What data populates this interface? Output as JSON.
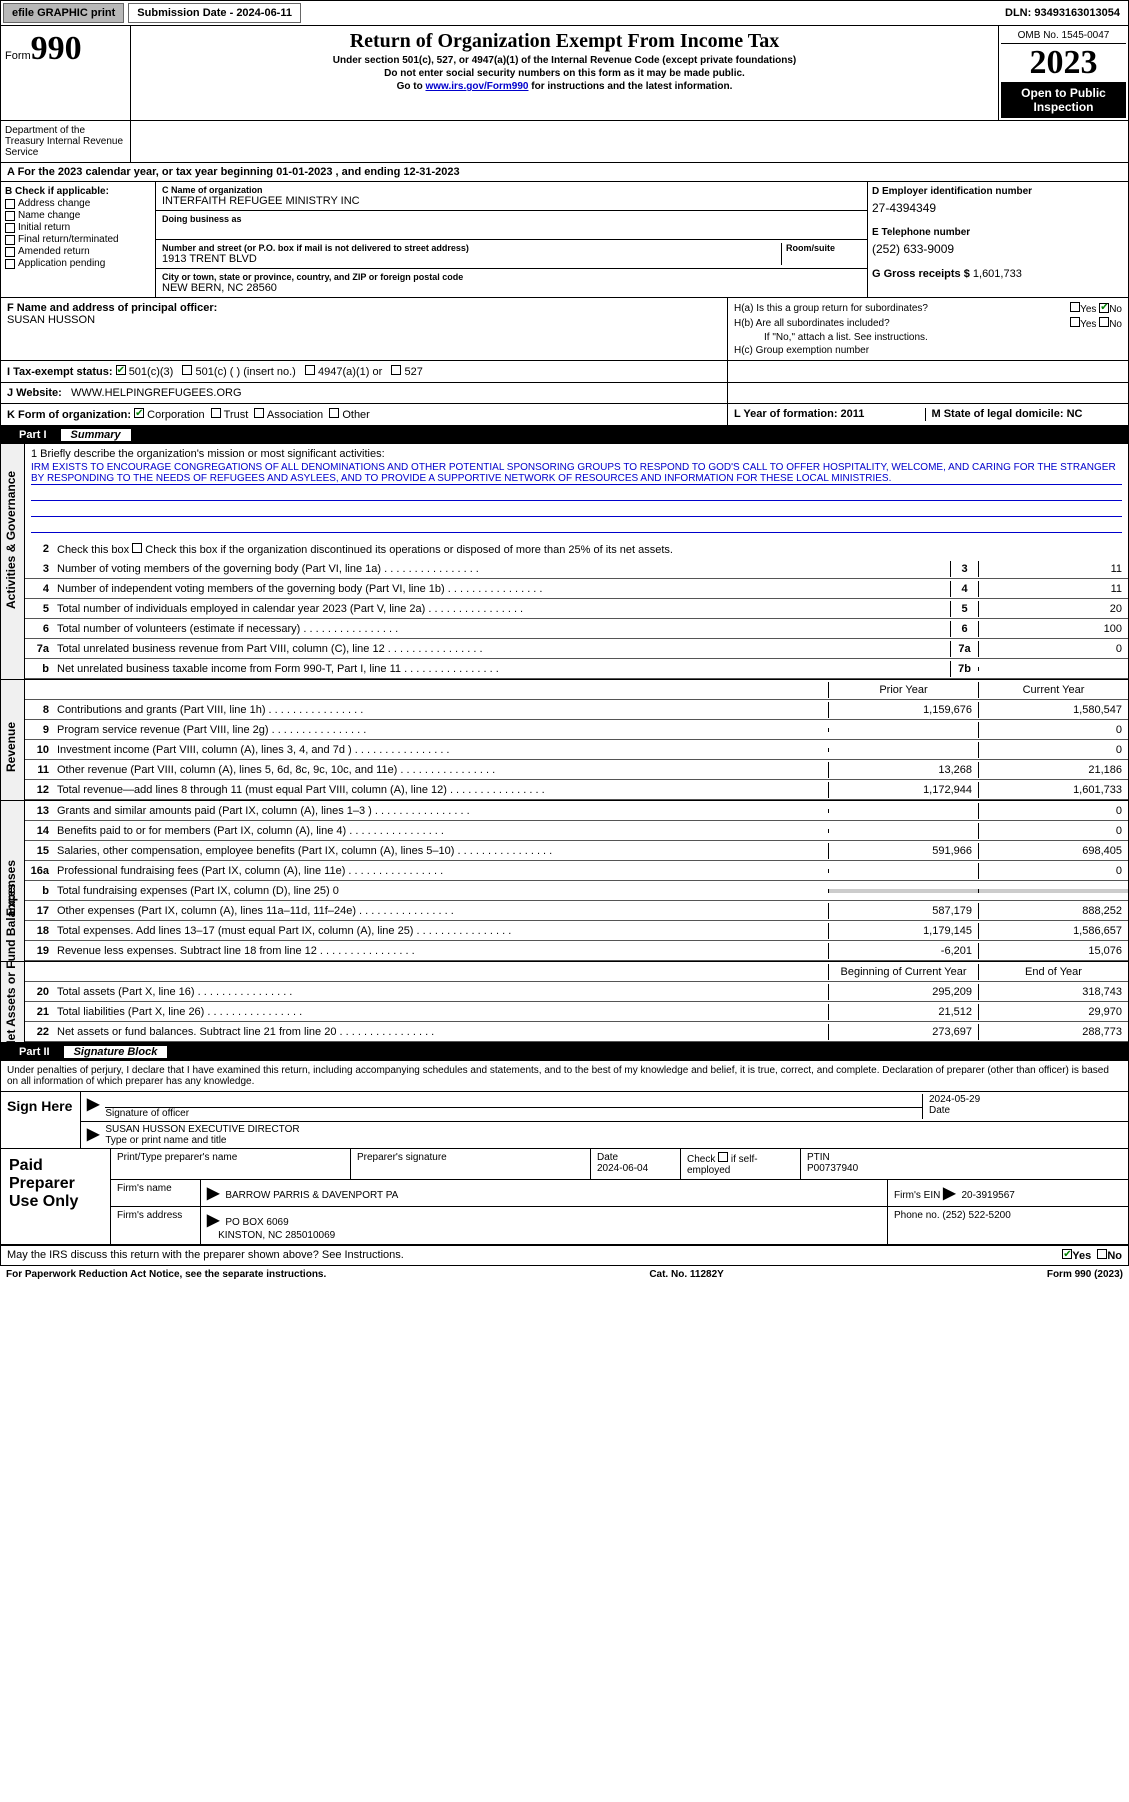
{
  "topbar": {
    "efile": "efile GRAPHIC print",
    "subdate_label": "Submission Date - 2024-06-11",
    "dln": "DLN: 93493163013054"
  },
  "header": {
    "form_prefix": "Form",
    "form_num": "990",
    "title": "Return of Organization Exempt From Income Tax",
    "sub1": "Under section 501(c), 527, or 4947(a)(1) of the Internal Revenue Code (except private foundations)",
    "sub2": "Do not enter social security numbers on this form as it may be made public.",
    "goto": "Go to www.irs.gov/Form990 for instructions and the latest information.",
    "goto_link": "www.irs.gov/Form990",
    "omb": "OMB No. 1545-0047",
    "year": "2023",
    "open": "Open to Public Inspection",
    "dept": "Department of the Treasury Internal Revenue Service"
  },
  "rowA": "A For the 2023 calendar year, or tax year beginning 01-01-2023   , and ending 12-31-2023",
  "colB": {
    "label": "B Check if applicable:",
    "opts": [
      "Address change",
      "Name change",
      "Initial return",
      "Final return/terminated",
      "Amended return",
      "Application pending"
    ]
  },
  "colC": {
    "name_label": "C Name of organization",
    "name": "INTERFAITH REFUGEE MINISTRY INC",
    "dba_label": "Doing business as",
    "addr_label": "Number and street (or P.O. box if mail is not delivered to street address)",
    "room_label": "Room/suite",
    "addr": "1913 TRENT BLVD",
    "city_label": "City or town, state or province, country, and ZIP or foreign postal code",
    "city": "NEW BERN, NC  28560"
  },
  "colD": {
    "ein_label": "D Employer identification number",
    "ein": "27-4394349",
    "phone_label": "E Telephone number",
    "phone": "(252) 633-9009",
    "gross_label": "G Gross receipts $",
    "gross": "1,601,733"
  },
  "rowF": {
    "label": "F Name and address of principal officer:",
    "name": "SUSAN HUSSON"
  },
  "rowH": {
    "ha": "H(a)  Is this a group return for subordinates?",
    "hb": "H(b)  Are all subordinates included?",
    "hb_note": "If \"No,\" attach a list. See instructions.",
    "hc": "H(c)  Group exemption number",
    "yes": "Yes",
    "no": "No"
  },
  "rowI": {
    "label": "I   Tax-exempt status:",
    "o1": "501(c)(3)",
    "o2": "501(c) (  ) (insert no.)",
    "o3": "4947(a)(1) or",
    "o4": "527"
  },
  "rowJ": {
    "label": "J   Website:",
    "val": "WWW.HELPINGREFUGEES.ORG"
  },
  "rowK": {
    "label": "K Form of organization:",
    "o1": "Corporation",
    "o2": "Trust",
    "o3": "Association",
    "o4": "Other"
  },
  "rowL": {
    "label": "L Year of formation: 2011"
  },
  "rowM": {
    "label": "M State of legal domicile: NC"
  },
  "part1": {
    "label": "Part I",
    "title": "Summary"
  },
  "mission": {
    "q": "1  Briefly describe the organization's mission or most significant activities:",
    "text": "IRM EXISTS TO ENCOURAGE CONGREGATIONS OF ALL DENOMINATIONS AND OTHER POTENTIAL SPONSORING GROUPS TO RESPOND TO GOD'S CALL TO OFFER HOSPITALITY, WELCOME, AND CARING FOR THE STRANGER BY RESPONDING TO THE NEEDS OF REFUGEES AND ASYLEES, AND TO PROVIDE A SUPPORTIVE NETWORK OF RESOURCES AND INFORMATION FOR THESE LOCAL MINISTRIES."
  },
  "gov": {
    "q2": "Check this box      if the organization discontinued its operations or disposed of more than 25% of its net assets.",
    "rows": [
      {
        "n": "3",
        "t": "Number of voting members of the governing body (Part VI, line 1a)",
        "box": "3",
        "v": "11"
      },
      {
        "n": "4",
        "t": "Number of independent voting members of the governing body (Part VI, line 1b)",
        "box": "4",
        "v": "11"
      },
      {
        "n": "5",
        "t": "Total number of individuals employed in calendar year 2023 (Part V, line 2a)",
        "box": "5",
        "v": "20"
      },
      {
        "n": "6",
        "t": "Total number of volunteers (estimate if necessary)",
        "box": "6",
        "v": "100"
      },
      {
        "n": "7a",
        "t": "Total unrelated business revenue from Part VIII, column (C), line 12",
        "box": "7a",
        "v": "0"
      },
      {
        "n": "b",
        "t": "Net unrelated business taxable income from Form 990-T, Part I, line 11",
        "box": "7b",
        "v": ""
      }
    ]
  },
  "rev": {
    "hdr_prior": "Prior Year",
    "hdr_curr": "Current Year",
    "rows": [
      {
        "n": "8",
        "t": "Contributions and grants (Part VIII, line 1h)",
        "p": "1,159,676",
        "c": "1,580,547"
      },
      {
        "n": "9",
        "t": "Program service revenue (Part VIII, line 2g)",
        "p": "",
        "c": "0"
      },
      {
        "n": "10",
        "t": "Investment income (Part VIII, column (A), lines 3, 4, and 7d )",
        "p": "",
        "c": "0"
      },
      {
        "n": "11",
        "t": "Other revenue (Part VIII, column (A), lines 5, 6d, 8c, 9c, 10c, and 11e)",
        "p": "13,268",
        "c": "21,186"
      },
      {
        "n": "12",
        "t": "Total revenue—add lines 8 through 11 (must equal Part VIII, column (A), line 12)",
        "p": "1,172,944",
        "c": "1,601,733"
      }
    ]
  },
  "exp": {
    "rows": [
      {
        "n": "13",
        "t": "Grants and similar amounts paid (Part IX, column (A), lines 1–3 )",
        "p": "",
        "c": "0"
      },
      {
        "n": "14",
        "t": "Benefits paid to or for members (Part IX, column (A), line 4)",
        "p": "",
        "c": "0"
      },
      {
        "n": "15",
        "t": "Salaries, other compensation, employee benefits (Part IX, column (A), lines 5–10)",
        "p": "591,966",
        "c": "698,405"
      },
      {
        "n": "16a",
        "t": "Professional fundraising fees (Part IX, column (A), line 11e)",
        "p": "",
        "c": "0"
      },
      {
        "n": "b",
        "t": "Total fundraising expenses (Part IX, column (D), line 25) 0",
        "p": null,
        "c": null
      },
      {
        "n": "17",
        "t": "Other expenses (Part IX, column (A), lines 11a–11d, 11f–24e)",
        "p": "587,179",
        "c": "888,252"
      },
      {
        "n": "18",
        "t": "Total expenses. Add lines 13–17 (must equal Part IX, column (A), line 25)",
        "p": "1,179,145",
        "c": "1,586,657"
      },
      {
        "n": "19",
        "t": "Revenue less expenses. Subtract line 18 from line 12",
        "p": "-6,201",
        "c": "15,076"
      }
    ]
  },
  "net": {
    "hdr_prior": "Beginning of Current Year",
    "hdr_curr": "End of Year",
    "rows": [
      {
        "n": "20",
        "t": "Total assets (Part X, line 16)",
        "p": "295,209",
        "c": "318,743"
      },
      {
        "n": "21",
        "t": "Total liabilities (Part X, line 26)",
        "p": "21,512",
        "c": "29,970"
      },
      {
        "n": "22",
        "t": "Net assets or fund balances. Subtract line 21 from line 20",
        "p": "273,697",
        "c": "288,773"
      }
    ]
  },
  "vlabels": {
    "gov": "Activities & Governance",
    "rev": "Revenue",
    "exp": "Expenses",
    "net": "Net Assets or Fund Balances"
  },
  "part2": {
    "label": "Part II",
    "title": "Signature Block"
  },
  "perjury": "Under penalties of perjury, I declare that I have examined this return, including accompanying schedules and statements, and to the best of my knowledge and belief, it is true, correct, and complete. Declaration of preparer (other than officer) is based on all information of which preparer has any knowledge.",
  "sign": {
    "here": "Sign Here",
    "sig_label": "Signature of officer",
    "date_label": "Date",
    "date": "2024-05-29",
    "name": "SUSAN HUSSON  EXECUTIVE DIRECTOR",
    "name_label": "Type or print name and title"
  },
  "paid": {
    "label": "Paid Preparer Use Only",
    "h1": "Print/Type preparer's name",
    "h2": "Preparer's signature",
    "h3": "Date",
    "h3v": "2024-06-04",
    "h4": "Check      if self-employed",
    "h5": "PTIN",
    "h5v": "P00737940",
    "firm_label": "Firm's name",
    "firm": "BARROW PARRIS & DAVENPORT PA",
    "ein_label": "Firm's EIN",
    "ein": "20-3919567",
    "addr_label": "Firm's address",
    "addr1": "PO BOX 6069",
    "addr2": "KINSTON, NC  285010069",
    "phone_label": "Phone no.",
    "phone": "(252) 522-5200"
  },
  "discuss": "May the IRS discuss this return with the preparer shown above? See Instructions.",
  "footer": {
    "left": "For Paperwork Reduction Act Notice, see the separate instructions.",
    "mid": "Cat. No. 11282Y",
    "right": "Form 990 (2023)"
  }
}
